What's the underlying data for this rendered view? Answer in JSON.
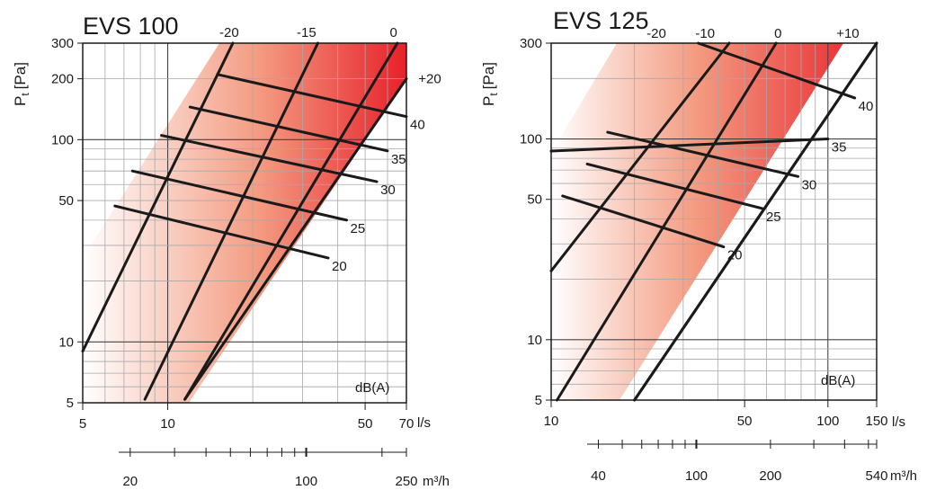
{
  "chart_data": [
    {
      "type": "line",
      "title": "EVS 100",
      "ylabel": "P",
      "ylabel_sub": "t",
      "ylabel_unit": "[Pa]",
      "y_scale": "log",
      "x_scale": "log",
      "ylim": [
        5,
        300
      ],
      "xlim": [
        5,
        70
      ],
      "y_ticks": [
        5,
        10,
        50,
        100,
        200,
        300
      ],
      "y_tick_labels": [
        "5",
        "10",
        "50",
        "100",
        "200",
        "300"
      ],
      "x_ticks": [
        5,
        10,
        50,
        70
      ],
      "x_tick_labels": [
        "5",
        "10",
        "50",
        "70"
      ],
      "x_unit": "l/s",
      "x2_ticks": [
        20,
        100,
        250
      ],
      "x2_tick_labels": [
        "20",
        "100",
        "250"
      ],
      "x2_unit": "m³/h",
      "annotation": "dB(A)",
      "grid": true,
      "operating_range": {
        "lower_boundary": [
          [
            11.5,
            5
          ],
          [
            70,
            200
          ]
        ],
        "upper_boundary": [
          [
            5,
            28
          ],
          [
            19.5,
            300
          ]
        ]
      },
      "damper_lines": [
        {
          "label": "-20",
          "points": [
            [
              5,
              9
            ],
            [
              17,
              300
            ]
          ]
        },
        {
          "label": "-15",
          "points": [
            [
              8.3,
              5.2
            ],
            [
              34,
              300
            ]
          ]
        },
        {
          "label": "0",
          "points": [
            [
              11.5,
              5.2
            ],
            [
              65,
              300
            ]
          ]
        },
        {
          "label": "+20",
          "points": [
            [
              11.5,
              5.2
            ],
            [
              70,
              200
            ]
          ]
        }
      ],
      "sound_lines": [
        {
          "label": "20",
          "points": [
            [
              6.5,
              47
            ],
            [
              37,
              26
            ]
          ]
        },
        {
          "label": "25",
          "points": [
            [
              7.5,
              70
            ],
            [
              43,
              40
            ]
          ]
        },
        {
          "label": "30",
          "points": [
            [
              9.5,
              105
            ],
            [
              55,
              62
            ]
          ]
        },
        {
          "label": "35",
          "points": [
            [
              12,
              145
            ],
            [
              60,
              88
            ]
          ]
        },
        {
          "label": "40",
          "points": [
            [
              15,
              210
            ],
            [
              70,
              130
            ]
          ]
        }
      ]
    },
    {
      "type": "line",
      "title": "EVS 125",
      "ylabel": "P",
      "ylabel_sub": "t",
      "ylabel_unit": "[Pa]",
      "y_scale": "log",
      "x_scale": "log",
      "ylim": [
        5,
        300
      ],
      "xlim": [
        10,
        150
      ],
      "y_ticks": [
        5,
        10,
        50,
        100,
        300
      ],
      "y_tick_labels": [
        "5",
        "10",
        "50",
        "100",
        "300"
      ],
      "x_ticks": [
        10,
        50,
        100,
        150
      ],
      "x_tick_labels": [
        "10",
        "50",
        "100",
        "150"
      ],
      "x_unit": "l/s",
      "x2_ticks": [
        40,
        100,
        200,
        540
      ],
      "x2_tick_labels": [
        "40",
        "100",
        "200",
        "540"
      ],
      "x2_unit": "m³/h",
      "annotation": "dB(A)",
      "grid": true,
      "operating_range": {
        "lower_boundary": [
          [
            20,
            5
          ],
          [
            150,
            300
          ]
        ],
        "upper_boundary": [
          [
            10,
            22
          ],
          [
            45,
            300
          ]
        ]
      },
      "damper_lines": [
        {
          "label": "-20",
          "points": [
            [
              10,
              22
            ],
            [
              44,
              300
            ]
          ]
        },
        {
          "label": "-10",
          "points": [
            [
              10.5,
              5
            ],
            [
              65,
              300
            ]
          ]
        },
        {
          "label": "0",
          "points": [
            [
              20,
              5
            ],
            [
              150,
              300
            ]
          ]
        },
        {
          "label": "+10",
          "points": [
            [
              20,
              5
            ],
            [
              150,
              300
            ]
          ]
        }
      ],
      "sound_lines": [
        {
          "label": "20",
          "points": [
            [
              11,
              52
            ],
            [
              42,
              29
            ]
          ]
        },
        {
          "label": "25",
          "points": [
            [
              13.5,
              75
            ],
            [
              58,
              45
            ]
          ]
        },
        {
          "label": "30",
          "points": [
            [
              16,
              108
            ],
            [
              78,
              65
            ]
          ]
        },
        {
          "label": "35",
          "points": [
            [
              10,
              87
            ],
            [
              100,
              100
            ]
          ]
        },
        {
          "label": "40",
          "points": [
            [
              34,
              300
            ],
            [
              125,
              160
            ]
          ]
        }
      ]
    }
  ]
}
